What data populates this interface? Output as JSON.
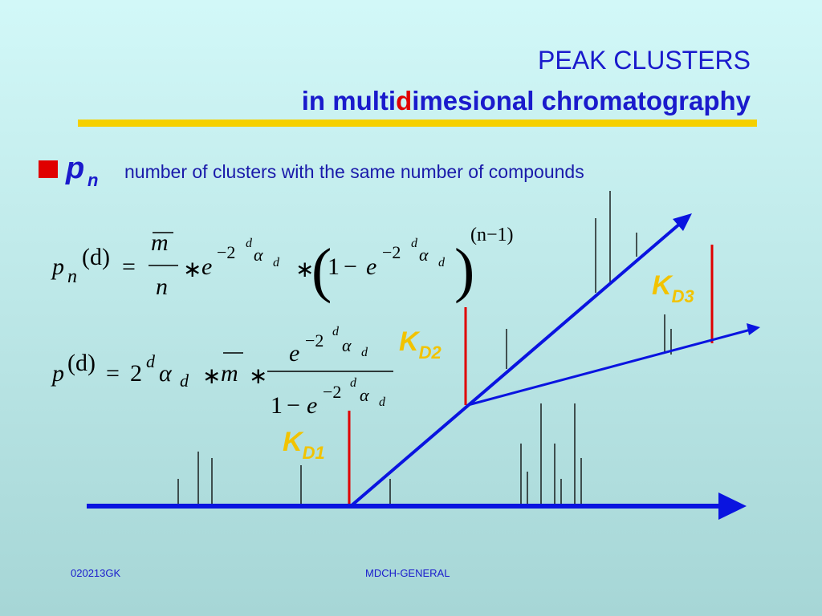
{
  "header": {
    "title_line1": "PEAK CLUSTERS",
    "title_line2": [
      "in multi",
      "d",
      "imesional chromatography"
    ]
  },
  "bullet": {
    "symbol": "p",
    "subscript": "n",
    "text": "number of clusters with the same number of compounds"
  },
  "formulas": [
    {
      "parts": [
        "p",
        "n",
        "(d)",
        "=",
        "m",
        "n",
        "∗",
        "e",
        "−2",
        "d",
        "α",
        "d",
        "∗",
        "(",
        "1",
        "−",
        "e",
        "−2",
        "d",
        "α",
        "d",
        ")",
        "(n−1)"
      ]
    },
    {
      "parts": [
        "p",
        "(d)",
        "=",
        "2",
        "d",
        "α",
        "d",
        "∗",
        "m",
        "∗",
        "e",
        "−2",
        "d",
        "α",
        "d",
        "1",
        "−",
        "e",
        "−2",
        "d",
        "α",
        "d"
      ]
    }
  ],
  "labels": [
    {
      "main": "K",
      "sub": "D1"
    },
    {
      "main": "K",
      "sub": "D2"
    },
    {
      "main": "K",
      "sub": "D3"
    }
  ],
  "footer": {
    "left": "020213GK",
    "center": "MDCH-GENERAL"
  }
}
